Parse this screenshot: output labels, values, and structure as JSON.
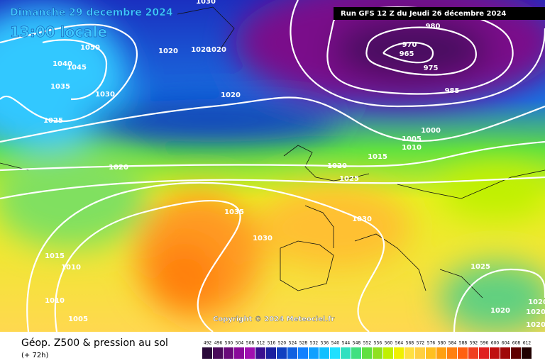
{
  "header": {
    "date": "Dimanche 29 decembre 2024",
    "time": "13:00 locale",
    "run": "Run GFS 12 Z du Jeudi 26 décembre 2024"
  },
  "copyright": "Copyright © 2024 Meteociel.fr",
  "isobar_labels": [
    "1030",
    "1020",
    "1020",
    "1020",
    "1050",
    "1045",
    "1040",
    "1035",
    "1030",
    "1025",
    "1020",
    "1020",
    "980",
    "970",
    "965",
    "975",
    "985",
    "1000",
    "1005",
    "1010",
    "1015",
    "1020",
    "1025",
    "1035",
    "1030",
    "1030",
    "1015",
    "1010",
    "1010",
    "1005",
    "1025",
    "1020",
    "1020",
    "1020",
    "1020"
  ],
  "legend": {
    "title": "Géop. Z500 & pression au sol",
    "lead": "(+ 72h)",
    "scale": [
      492,
      496,
      500,
      504,
      508,
      512,
      516,
      520,
      524,
      528,
      532,
      536,
      540,
      544,
      548,
      552,
      556,
      560,
      564,
      568,
      572,
      576,
      580,
      584,
      588,
      592,
      596,
      600,
      604,
      608,
      612
    ],
    "colors": [
      "#2a0a3a",
      "#4a0a5a",
      "#6a0a7a",
      "#8a0a9a",
      "#a010b0",
      "#3a1090",
      "#1a20a0",
      "#1040c0",
      "#1060e0",
      "#1080ff",
      "#10a0ff",
      "#10c0ff",
      "#20e0ff",
      "#30e0c0",
      "#40e080",
      "#60e040",
      "#90e020",
      "#c0f000",
      "#f0f000",
      "#ffe040",
      "#ffd040",
      "#ffc020",
      "#ffa010",
      "#ff8010",
      "#ff6010",
      "#f04020",
      "#e02020",
      "#c01010",
      "#a00808",
      "#600000",
      "#200000"
    ]
  }
}
